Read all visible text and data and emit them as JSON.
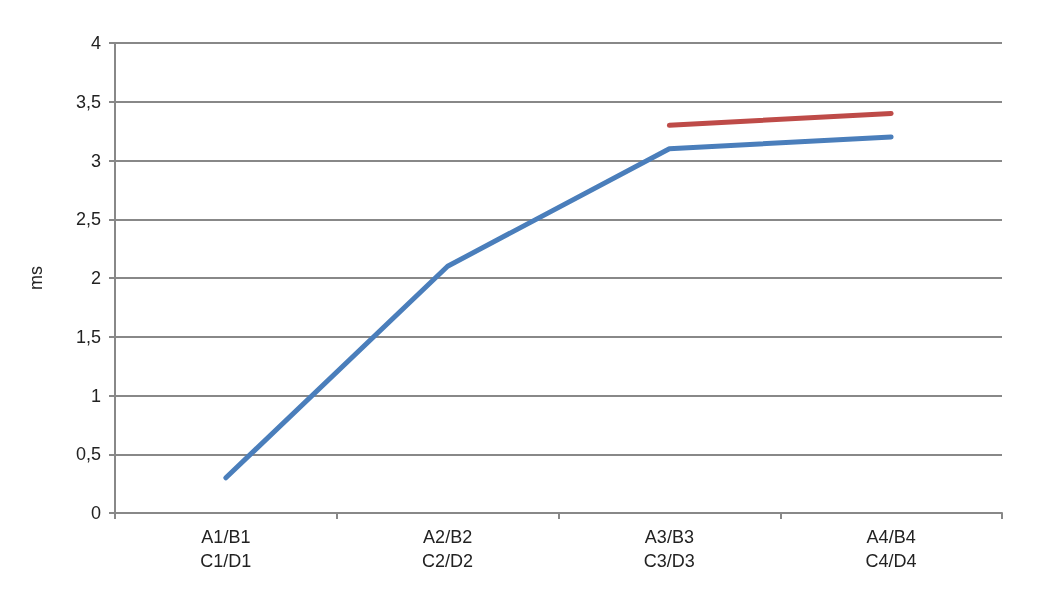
{
  "chart_data": {
    "type": "line",
    "ylabel": "ms",
    "categories": [
      "A1/B1\nC1/D1",
      "A2/B2\nC2/D2",
      "A3/B3\nC3/D3",
      "A4/B4\nC4/D4"
    ],
    "series": [
      {
        "color": "#4a7ebb",
        "values": [
          0.3,
          2.1,
          3.1,
          3.2
        ]
      },
      {
        "color": "#be4b48",
        "values": [
          null,
          null,
          3.3,
          3.4
        ]
      }
    ],
    "ylim": [
      0,
      4
    ],
    "yticks": [
      0,
      {
        "value": 0.5,
        "label": "0,5"
      },
      1,
      {
        "value": 1.5,
        "label": "1,5"
      },
      2,
      {
        "value": 2.5,
        "label": "2,5"
      },
      3,
      {
        "value": 3.5,
        "label": "3,5"
      },
      4
    ],
    "grid": "y",
    "marker": "none",
    "line_style": "solid"
  }
}
